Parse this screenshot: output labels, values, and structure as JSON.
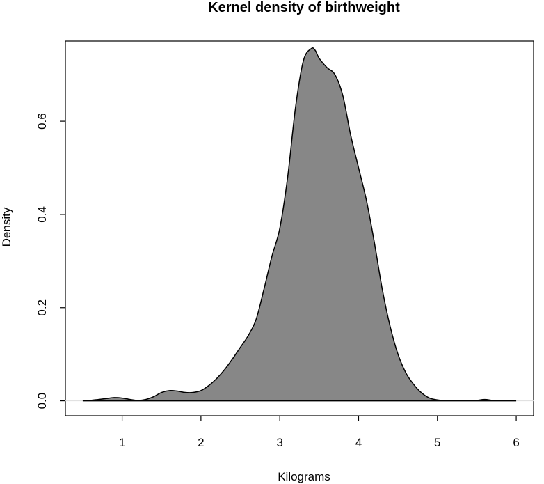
{
  "chart_data": {
    "type": "area",
    "title": "Kernel density of birthweight",
    "xlabel": "Kilograms",
    "ylabel": "Density",
    "xlim": [
      0.28,
      6.22
    ],
    "ylim": [
      -0.032,
      0.772
    ],
    "xticks": [
      1,
      2,
      3,
      4,
      5,
      6
    ],
    "xtick_labels": [
      "1",
      "2",
      "3",
      "4",
      "5",
      "6"
    ],
    "yticks": [
      0.0,
      0.2,
      0.4,
      0.6
    ],
    "ytick_labels": [
      "0.0",
      "0.2",
      "0.4",
      "0.6"
    ],
    "fill_color": "#878787",
    "line_color": "#000000",
    "baseline_color": "#dddddd",
    "series": [
      {
        "name": "density",
        "x": [
          0.5,
          0.6,
          0.7,
          0.8,
          0.9,
          1.0,
          1.1,
          1.2,
          1.3,
          1.4,
          1.5,
          1.6,
          1.7,
          1.8,
          1.9,
          2.0,
          2.1,
          2.2,
          2.3,
          2.4,
          2.5,
          2.6,
          2.7,
          2.8,
          2.9,
          3.0,
          3.1,
          3.2,
          3.3,
          3.4,
          3.45,
          3.5,
          3.6,
          3.7,
          3.8,
          3.9,
          4.0,
          4.1,
          4.2,
          4.3,
          4.4,
          4.5,
          4.6,
          4.7,
          4.8,
          4.9,
          5.0,
          5.1,
          5.2,
          5.3,
          5.4,
          5.5,
          5.6,
          5.7,
          5.8,
          5.9,
          6.0
        ],
        "y": [
          0.0,
          0.001,
          0.003,
          0.005,
          0.007,
          0.006,
          0.003,
          0.001,
          0.003,
          0.009,
          0.018,
          0.022,
          0.021,
          0.018,
          0.018,
          0.022,
          0.033,
          0.048,
          0.067,
          0.09,
          0.115,
          0.14,
          0.175,
          0.24,
          0.31,
          0.37,
          0.48,
          0.63,
          0.73,
          0.756,
          0.752,
          0.735,
          0.715,
          0.7,
          0.655,
          0.57,
          0.5,
          0.43,
          0.34,
          0.24,
          0.16,
          0.1,
          0.06,
          0.035,
          0.017,
          0.006,
          0.002,
          0.0,
          0.0,
          0.0,
          0.0,
          0.001,
          0.003,
          0.001,
          0.0,
          0.0,
          0.0
        ]
      }
    ]
  }
}
